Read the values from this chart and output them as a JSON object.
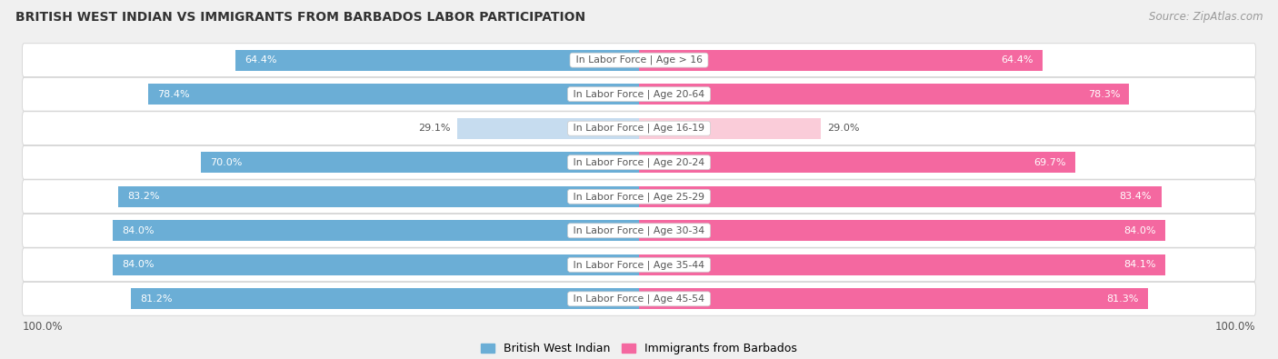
{
  "title": "BRITISH WEST INDIAN VS IMMIGRANTS FROM BARBADOS LABOR PARTICIPATION",
  "source": "Source: ZipAtlas.com",
  "categories": [
    "In Labor Force | Age > 16",
    "In Labor Force | Age 20-64",
    "In Labor Force | Age 16-19",
    "In Labor Force | Age 20-24",
    "In Labor Force | Age 25-29",
    "In Labor Force | Age 30-34",
    "In Labor Force | Age 35-44",
    "In Labor Force | Age 45-54"
  ],
  "left_values": [
    64.4,
    78.4,
    29.1,
    70.0,
    83.2,
    84.0,
    84.0,
    81.2
  ],
  "right_values": [
    64.4,
    78.3,
    29.0,
    69.7,
    83.4,
    84.0,
    84.1,
    81.3
  ],
  "left_color": "#6BAED6",
  "right_color": "#F468A0",
  "left_color_light": "#C6DCEF",
  "right_color_light": "#FACCD9",
  "label_left": "British West Indian",
  "label_right": "Immigrants from Barbados",
  "max_value": 100.0,
  "bar_height": 0.62,
  "background_color": "#f0f0f0",
  "row_bg_color": "#ffffff",
  "center_label_color": "#555555",
  "value_label_color_dark": "#555555",
  "value_label_color_white": "#ffffff",
  "small_threshold": 40
}
